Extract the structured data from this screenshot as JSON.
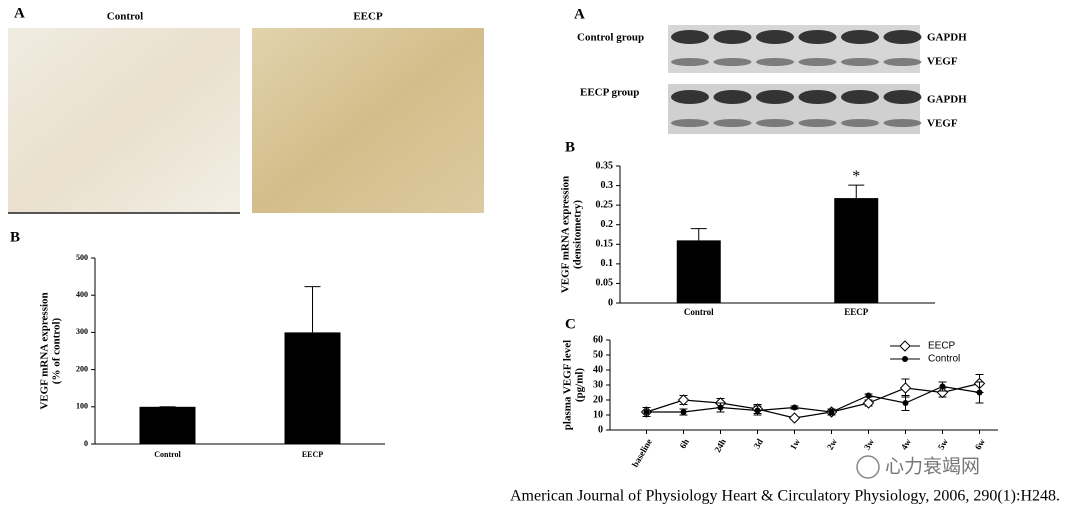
{
  "histology": {
    "label": "A",
    "images": [
      "Control",
      "EECP"
    ]
  },
  "blot": {
    "label": "A",
    "groups": [
      {
        "name": "Control group",
        "bands": [
          "GAPDH",
          "VEGF"
        ]
      },
      {
        "name": "EECP group",
        "bands": [
          "GAPDH",
          "VEGF"
        ]
      }
    ]
  },
  "chart_data": [
    {
      "type": "bar",
      "panel": "B",
      "ylabel": "VEGF mRNA expression",
      "ylabel_sub": "(% of control)",
      "categories": [
        "Control",
        "EECP"
      ],
      "values": [
        100,
        300
      ],
      "errors": [
        0,
        123
      ],
      "color": "#000000",
      "ylim": [
        0,
        500
      ],
      "yticks": [
        0,
        100,
        200,
        300,
        400,
        500
      ]
    },
    {
      "type": "bar",
      "panel": "B",
      "ylabel": "VEGF mRNA expression",
      "ylabel_sub": "(densitometry)",
      "categories": [
        "Control",
        "EECP"
      ],
      "values": [
        0.16,
        0.268
      ],
      "errors": [
        0.03,
        0.033
      ],
      "color": "#000000",
      "ylim": [
        0,
        0.35
      ],
      "yticks": [
        0,
        0.05,
        0.1,
        0.15,
        0.2,
        0.25,
        0.3,
        0.35
      ],
      "annotations": [
        {
          "text": "*",
          "category": "EECP"
        }
      ]
    },
    {
      "type": "line",
      "panel": "C",
      "ylabel": "plasma VEGF level",
      "ylabel_sub": "(pg/ml)",
      "categories": [
        "baseline",
        "6h",
        "24h",
        "3d",
        "1w",
        "2w",
        "3w",
        "4w",
        "5w",
        "6w"
      ],
      "series": [
        {
          "name": "EECP",
          "color": "#000000",
          "marker": "diamond-open",
          "values": [
            12,
            20,
            18,
            14,
            8,
            12,
            18,
            28,
            25,
            31
          ],
          "errors": [
            3,
            3,
            3,
            3,
            1,
            2,
            2,
            6,
            3,
            6
          ]
        },
        {
          "name": "Control",
          "color": "#000000",
          "marker": "circle",
          "values": [
            12,
            12,
            15,
            13,
            15,
            12,
            23,
            18,
            29,
            25
          ],
          "errors": [
            3,
            2,
            3,
            3,
            1,
            2,
            1,
            5,
            3,
            7
          ]
        }
      ],
      "ylim": [
        0,
        60
      ],
      "yticks": [
        0,
        10,
        20,
        30,
        40,
        50,
        60
      ],
      "legend": "upper right"
    }
  ],
  "citation": "American Journal of Physiology Heart & Circulatory Physiology, 2006, 290(1):H248.",
  "watermark": "心力衰竭网"
}
